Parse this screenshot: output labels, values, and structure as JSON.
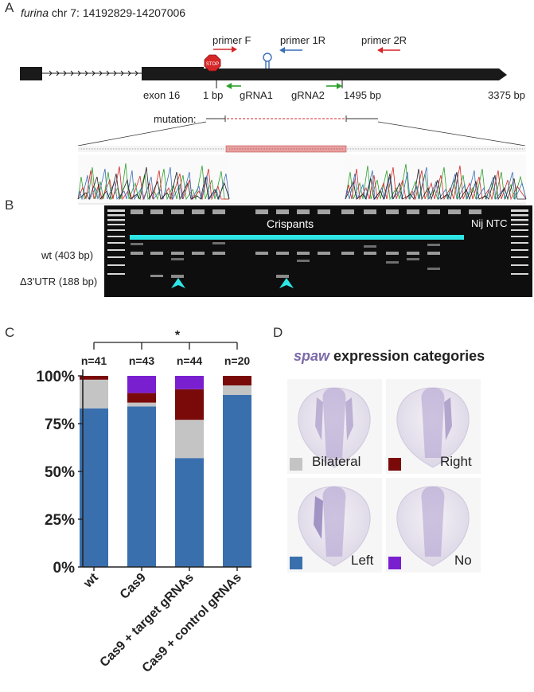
{
  "panelA": {
    "letter": "A",
    "title_gene": "furina",
    "title_locus": " chr 7: 14192829-14207006",
    "primer_f": "primer F",
    "primer_1r": "primer 1R",
    "primer_2r": "primer 2R",
    "stop_label": "STOP",
    "exon_label": "exon 16",
    "bp_start": "1 bp",
    "grna1": "gRNA1",
    "grna2": "gRNA2",
    "bp_mid": "1495 bp",
    "bp_end": "3375 bp",
    "mutation_label": "mutation:",
    "colors": {
      "primer_red": "#d62728",
      "primer_blue": "#3a6fb5",
      "grna_green": "#2ca02c",
      "deletion": "#e8a0a0"
    }
  },
  "panelB": {
    "letter": "B",
    "crispants": "Crispants",
    "nij_ntc": "Nij NTC",
    "wt_band": "wt (403 bp)",
    "del_band": "Δ3'UTR (188 bp)",
    "colors": {
      "highlight": "#2ee6e6"
    }
  },
  "panelC": {
    "letter": "C",
    "significance": "*",
    "chart_data": {
      "type": "bar",
      "stacked": true,
      "categories": [
        "wt",
        "Cas9",
        "Cas9 + target gRNAs",
        "Cas9 + control gRNAs"
      ],
      "n_labels": [
        "n=41",
        "n=43",
        "n=44",
        "n=20"
      ],
      "ytick_labels": [
        "0%",
        "25%",
        "50%",
        "75%",
        "100%"
      ],
      "ylim": [
        0,
        100
      ],
      "series": [
        {
          "name": "Left",
          "color": "#3a6fad",
          "values": [
            83,
            84,
            57,
            90
          ]
        },
        {
          "name": "Bilateral",
          "color": "#c4c4c4",
          "values": [
            15,
            2,
            20,
            5
          ]
        },
        {
          "name": "Right",
          "color": "#7a0a0a",
          "values": [
            2,
            5,
            16,
            5
          ]
        },
        {
          "name": "No",
          "color": "#7a1fd0",
          "values": [
            0,
            9,
            7,
            0
          ]
        }
      ]
    }
  },
  "panelD": {
    "letter": "D",
    "title_gene": "spaw",
    "title_rest": " expression categories",
    "categories": [
      {
        "label": "Bilateral",
        "color": "#c4c4c4"
      },
      {
        "label": "Right",
        "color": "#7a0a0a"
      },
      {
        "label": "Left",
        "color": "#3a6fad"
      },
      {
        "label": "No",
        "color": "#7a1fd0"
      }
    ],
    "title_color": "#7b6aa8"
  }
}
